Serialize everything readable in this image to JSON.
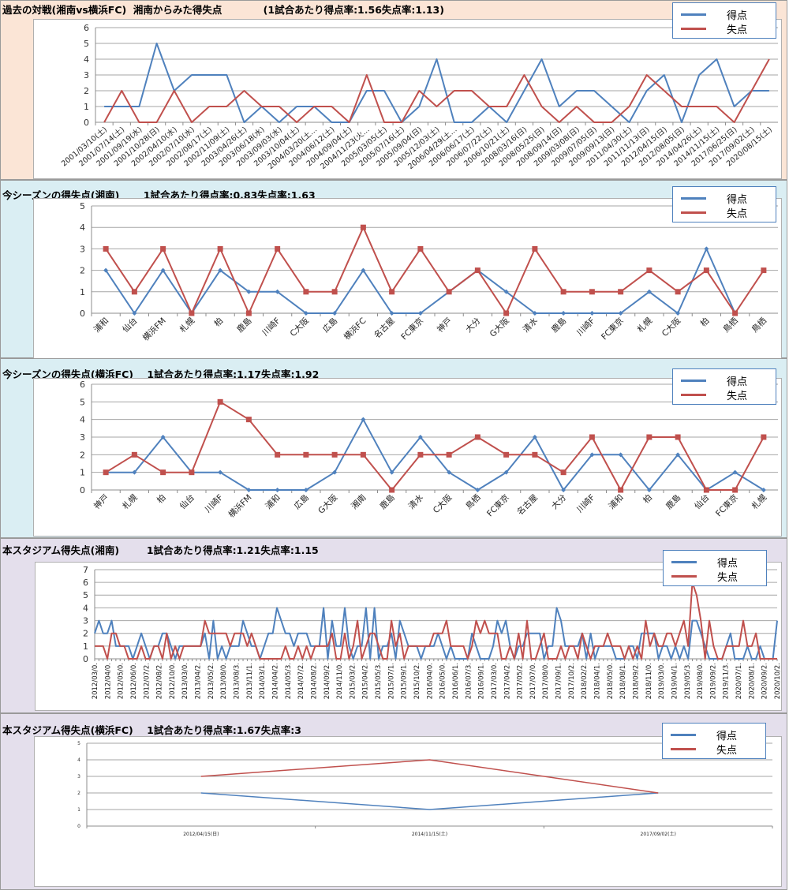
{
  "legend": {
    "goals": "得点",
    "conceded": "失点"
  },
  "colors": {
    "goals": "#4f81bd",
    "conceded": "#c0504d"
  },
  "panels": [
    {
      "title": "過去の対戦(湘南vs横浜FC)  湘南からみた得失点            (1試合あたり得点率:1.56失点率:1.13)"
    },
    {
      "title": "今シーズンの得失点(湘南)       1試合あたり得点率:0.83失点率:1.63"
    },
    {
      "title": "今シーズンの得失点(横浜FC)    1試合あたり得点率:1.17失点率:1.92"
    },
    {
      "title": "本スタジアム得失点(湘南)        1試合あたり得点率:1.21失点率:1.15"
    },
    {
      "title": "本スタジアム得失点(横浜FC)    1試合あたり得点率:1.67失点率:3"
    }
  ],
  "chart_data": [
    {
      "type": "line",
      "title": "過去の対戦(湘南vs横浜FC) 湘南からみた得失点",
      "ylim": [
        0,
        6
      ],
      "yticks": [
        0,
        1,
        2,
        3,
        4,
        5,
        6
      ],
      "grid": true,
      "legend": "top-right",
      "markers": false,
      "categories": [
        "2001/03/10(土)",
        "2001/07/14(土)",
        "2001/09/19(水)",
        "2001/10/28(日)",
        "2002/04/10(水)",
        "2002/07/10(水)",
        "2002/08/17(土)",
        "2002/11/09(土)",
        "2003/04/26(土)",
        "2003/06/18(水)",
        "2003/09/03(水)",
        "2003/10/04(土)",
        "2004/03/20(土…",
        "2004/06/12(土)",
        "2004/09/04(土)",
        "2004/11/23(火…",
        "2005/03/05(土)",
        "2005/07/16(土)",
        "2005/09/04(日)",
        "2005/12/03(土)",
        "2006/04/29(土…",
        "2006/06/17(土)",
        "2006/07/22(土)",
        "2006/10/21(土)",
        "2008/03/16(日)",
        "2008/05/25(日)",
        "2008/09/14(日)",
        "2009/03/08(日)",
        "2009/07/05(日)",
        "2009/09/13(日)",
        "2011/04/30(土)",
        "2011/11/13(日)",
        "2012/04/15(日)",
        "2012/08/05(日)",
        "2014/04/26(土)",
        "2014/11/15(土)",
        "2017/06/25(日)",
        "2017/09/02(土)",
        "2020/08/15(土)"
      ],
      "series": [
        {
          "name": "得点",
          "values": [
            1,
            1,
            1,
            5,
            2,
            3,
            3,
            3,
            0,
            1,
            0,
            1,
            1,
            0,
            0,
            2,
            2,
            0,
            1,
            4,
            0,
            0,
            1,
            0,
            2,
            4,
            1,
            2,
            2,
            1,
            0,
            2,
            3,
            0,
            3,
            4,
            1,
            2,
            2
          ]
        },
        {
          "name": "失点",
          "values": [
            0,
            2,
            0,
            0,
            2,
            0,
            1,
            1,
            2,
            1,
            1,
            0,
            1,
            1,
            0,
            3,
            0,
            0,
            2,
            1,
            2,
            2,
            1,
            1,
            3,
            1,
            0,
            1,
            0,
            0,
            1,
            3,
            2,
            1,
            1,
            1,
            0,
            2,
            4
          ]
        }
      ]
    },
    {
      "type": "line",
      "title": "今シーズンの得失点(湘南)",
      "ylim": [
        0,
        5
      ],
      "yticks": [
        0,
        1,
        2,
        3,
        4,
        5
      ],
      "grid": true,
      "legend": "top-right",
      "markers": true,
      "categories": [
        "浦和",
        "仙台",
        "横浜FM",
        "札幌",
        "柏",
        "鹿島",
        "川崎F",
        "C大阪",
        "広島",
        "横浜FC",
        "名古屋",
        "FC東京",
        "神戸",
        "大分",
        "G大阪",
        "清水",
        "鹿島",
        "川崎F",
        "FC東京",
        "札幌",
        "C大阪",
        "柏",
        "鳥栖",
        "鳥栖"
      ],
      "series": [
        {
          "name": "得点",
          "values": [
            2,
            0,
            2,
            0,
            2,
            1,
            1,
            0,
            0,
            2,
            0,
            0,
            1,
            2,
            1,
            0,
            0,
            0,
            0,
            1,
            0,
            3,
            0,
            null
          ]
        },
        {
          "name": "失点",
          "values": [
            3,
            1,
            3,
            0,
            3,
            0,
            3,
            1,
            1,
            4,
            1,
            3,
            1,
            2,
            0,
            3,
            1,
            1,
            1,
            2,
            1,
            2,
            0,
            2
          ]
        }
      ]
    },
    {
      "type": "line",
      "title": "今シーズンの得失点(横浜FC)",
      "ylim": [
        0,
        6
      ],
      "yticks": [
        0,
        1,
        2,
        3,
        4,
        5,
        6
      ],
      "grid": true,
      "legend": "top-right",
      "markers": true,
      "categories": [
        "神戸",
        "札幌",
        "柏",
        "仙台",
        "川崎F",
        "横浜FM",
        "浦和",
        "広島",
        "G大阪",
        "湘南",
        "鹿島",
        "清水",
        "C大阪",
        "鳥栖",
        "FC東京",
        "名古屋",
        "大分",
        "川崎F",
        "浦和",
        "柏",
        "鹿島",
        "仙台",
        "FC東京",
        "札幌"
      ],
      "series": [
        {
          "name": "得点",
          "values": [
            1,
            1,
            3,
            1,
            1,
            0,
            0,
            0,
            1,
            4,
            1,
            3,
            1,
            0,
            1,
            3,
            0,
            2,
            2,
            0,
            2,
            0,
            1,
            0
          ]
        },
        {
          "name": "失点",
          "values": [
            1,
            2,
            1,
            1,
            5,
            4,
            2,
            2,
            2,
            2,
            0,
            2,
            2,
            3,
            2,
            2,
            1,
            3,
            0,
            3,
            3,
            0,
            0,
            3
          ]
        }
      ]
    },
    {
      "type": "line",
      "title": "本スタジアム得失点(湘南)",
      "ylim": [
        0,
        7
      ],
      "yticks": [
        0,
        1,
        2,
        3,
        4,
        5,
        6,
        7
      ],
      "grid": true,
      "legend": "top-right",
      "markers": false,
      "tick_labels": [
        "2012/03/0.",
        "2012/04/0.",
        "2012/05/0.",
        "2012/06/0.",
        "2012/07/2.",
        "2012/08/2.",
        "2012/10/0.",
        "2013/03/0.",
        "2013/04/2.",
        "2013/05/2.",
        "2013/08/0.",
        "2013/08/3.",
        "2013/11/1.",
        "2014/03/1.",
        "2014/04/2.",
        "2014/05/3.",
        "2014/07/2.",
        "2014/08/2.",
        "2014/09/2.",
        "2014/11/0.",
        "2015/03/2.",
        "2015/04/2.",
        "2015/05/3.",
        "2015/07/1.",
        "2015/09/1.",
        "2015/10/2.",
        "2016/04/0.",
        "2016/05/0.",
        "2016/06/1.",
        "2016/07/3.",
        "2016/09/1.",
        "2017/03/0.",
        "2017/04/2.",
        "2017/05/2.",
        "2017/07/0.",
        "2017/08/0.",
        "2017/09/1.",
        "2017/10/2.",
        "2018/02/2.",
        "2018/04/1.",
        "2018/05/0.",
        "2018/08/1.",
        "2018/09/2.",
        "2018/11/0.",
        "2019/03/0.",
        "2019/04/1.",
        "2019/05/3.",
        "2019/08/0.",
        "2019/09/2.",
        "2019/11/3.",
        "2020/07/1.",
        "2020/08/1.",
        "2020/09/2.",
        "2020/10/2."
      ],
      "series": [
        {
          "name": "得点",
          "values": [
            2,
            3,
            2,
            2,
            3,
            1,
            1,
            1,
            1,
            0,
            1,
            2,
            1,
            0,
            1,
            1,
            2,
            2,
            1,
            0,
            1,
            1,
            1,
            1,
            1,
            1,
            2,
            0,
            3,
            0,
            1,
            0,
            1,
            1,
            1,
            3,
            2,
            1,
            1,
            0,
            1,
            2,
            2,
            4,
            3,
            2,
            2,
            1,
            2,
            2,
            2,
            1,
            1,
            1,
            4,
            0,
            3,
            1,
            1,
            4,
            1,
            0,
            1,
            1,
            4,
            0,
            4,
            0,
            1,
            1,
            2,
            0,
            3,
            2,
            1,
            1,
            1,
            0,
            1,
            1,
            1,
            2,
            1,
            0,
            1,
            0,
            0,
            0,
            0,
            2,
            1,
            0,
            0,
            0,
            1,
            3,
            2,
            3,
            1,
            0,
            1,
            1,
            2,
            2,
            2,
            2,
            0,
            1,
            1,
            4,
            3,
            1,
            1,
            1,
            1,
            2,
            0,
            2,
            0,
            1,
            1,
            1,
            1,
            0,
            0,
            0,
            1,
            1,
            0,
            2,
            2,
            2,
            2,
            0,
            1,
            1,
            0,
            1,
            0,
            1,
            0,
            3,
            3,
            2,
            1,
            0,
            0,
            0,
            0,
            1,
            2,
            0,
            0,
            0,
            1,
            0,
            0,
            1,
            0,
            0,
            0,
            3
          ]
        },
        {
          "name": "失点",
          "values": [
            1,
            1,
            1,
            0,
            2,
            2,
            1,
            1,
            0,
            0,
            0,
            1,
            0,
            0,
            1,
            1,
            0,
            2,
            0,
            1,
            0,
            1,
            1,
            1,
            1,
            1,
            3,
            2,
            2,
            2,
            2,
            2,
            1,
            2,
            2,
            2,
            1,
            2,
            1,
            0,
            0,
            0,
            0,
            0,
            0,
            1,
            0,
            0,
            1,
            0,
            1,
            0,
            1,
            1,
            1,
            1,
            2,
            0,
            0,
            2,
            0,
            1,
            3,
            0,
            1,
            2,
            2,
            1,
            0,
            0,
            3,
            1,
            2,
            0,
            1,
            1,
            1,
            1,
            1,
            1,
            2,
            2,
            2,
            3,
            1,
            1,
            1,
            1,
            0,
            1,
            3,
            2,
            3,
            2,
            2,
            2,
            0,
            0,
            1,
            0,
            2,
            0,
            3,
            0,
            0,
            1,
            2,
            0,
            0,
            0,
            1,
            0,
            1,
            1,
            0,
            2,
            1,
            0,
            1,
            1,
            1,
            2,
            1,
            1,
            1,
            0,
            1,
            0,
            1,
            0,
            3,
            1,
            2,
            1,
            1,
            2,
            2,
            1,
            2,
            3,
            1,
            6,
            5,
            3,
            0,
            3,
            1,
            0,
            0,
            1,
            1,
            1,
            1,
            3,
            1,
            1,
            2,
            0,
            0,
            0,
            0,
            0
          ]
        }
      ]
    },
    {
      "type": "line",
      "title": "本スタジアム得失点(横浜FC)",
      "ylim": [
        0,
        5
      ],
      "yticks": [
        0,
        1,
        2,
        3,
        4,
        5
      ],
      "grid": true,
      "legend": "top-right",
      "markers": false,
      "categories": [
        "2012/04/15(日)",
        "2014/11/15(土)",
        "2017/09/02(土)"
      ],
      "series": [
        {
          "name": "得点",
          "values": [
            2,
            1,
            2
          ]
        },
        {
          "name": "失点",
          "values": [
            3,
            4,
            2
          ]
        }
      ]
    }
  ]
}
